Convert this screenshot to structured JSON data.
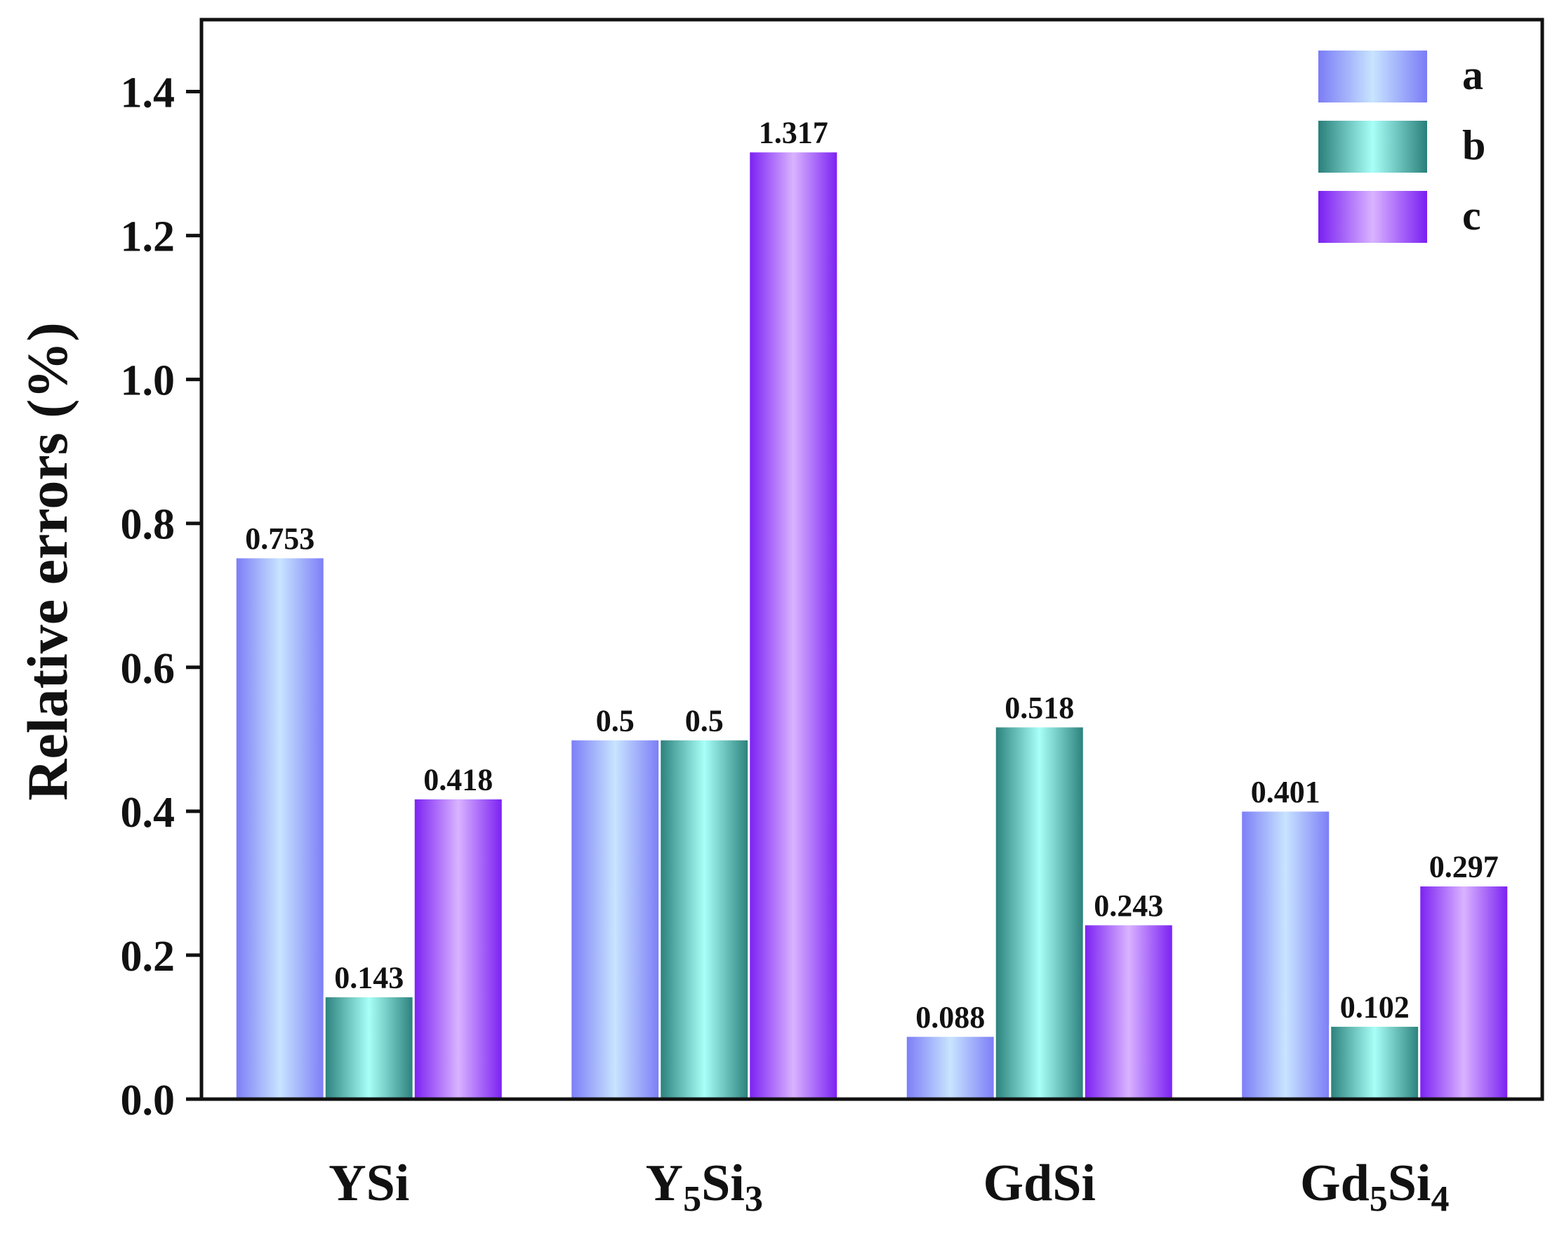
{
  "chart_data": {
    "type": "bar",
    "title": "",
    "xlabel": "",
    "ylabel": "Relative errors (%)",
    "ylim": [
      0,
      1.5
    ],
    "yticks": [
      "0.0",
      "0.2",
      "0.4",
      "0.6",
      "0.8",
      "1.0",
      "1.2",
      "1.4"
    ],
    "categories": [
      {
        "base": "Y",
        "sub1": "",
        "mid": "Si",
        "sub2": ""
      },
      {
        "base": "Y",
        "sub1": "5",
        "mid": "Si",
        "sub2": "3"
      },
      {
        "base": "Gd",
        "sub1": "",
        "mid": "Si",
        "sub2": ""
      },
      {
        "base": "Gd",
        "sub1": "5",
        "mid": "Si",
        "sub2": "4"
      }
    ],
    "series": [
      {
        "name": "a",
        "values": [
          0.753,
          0.5,
          0.088,
          0.401
        ],
        "labels": [
          "0.753",
          "0.5",
          "0.088",
          "0.401"
        ]
      },
      {
        "name": "b",
        "values": [
          0.143,
          0.5,
          0.518,
          0.102
        ],
        "labels": [
          "0.143",
          "0.5",
          "0.518",
          "0.102"
        ]
      },
      {
        "name": "c",
        "values": [
          0.418,
          1.317,
          0.243,
          0.297
        ],
        "labels": [
          "0.418",
          "1.317",
          "0.243",
          "0.297"
        ]
      }
    ],
    "legend_position": "top-right",
    "colors": {
      "a": [
        "#7b7cf6",
        "#c8e4ff",
        "#7b7cf6"
      ],
      "b": [
        "#2a7f7a",
        "#a8fff8",
        "#2a7f7a"
      ],
      "c": [
        "#7a1ff2",
        "#d9b3ff",
        "#7a1ff2"
      ]
    },
    "grid": false
  }
}
